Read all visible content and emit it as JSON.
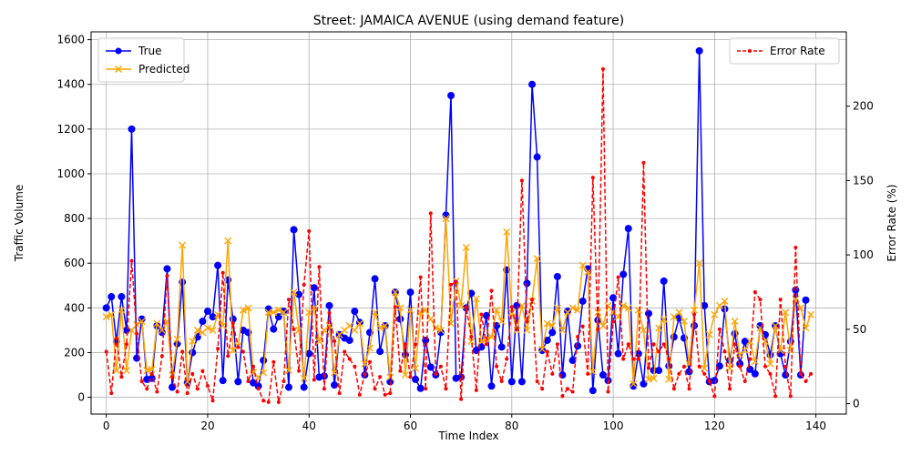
{
  "chart_data": {
    "type": "line",
    "title": "Street: JAMAICA AVENUE (using demand feature)",
    "xlabel": "Time Index",
    "ylabel": "Traffic Volume",
    "y2label": "Error Rate (%)",
    "xlim": [
      -3,
      146
    ],
    "ylim": [
      -75,
      1635
    ],
    "y2lim": [
      -7,
      250
    ],
    "xticks": [
      0,
      20,
      40,
      60,
      80,
      100,
      120,
      140
    ],
    "yticks": [
      0,
      200,
      400,
      600,
      800,
      1000,
      1200,
      1400,
      1600
    ],
    "y2ticks": [
      0,
      50,
      100,
      150,
      200
    ],
    "grid": true,
    "legend_left_position": "upper-left",
    "legend_right_position": "upper-right",
    "series": [
      {
        "name": "True",
        "axis": "left",
        "color": "#0000ff",
        "marker": "circle",
        "values": [
          400,
          450,
          250,
          450,
          300,
          1200,
          175,
          350,
          80,
          85,
          320,
          290,
          575,
          45,
          240,
          515,
          65,
          200,
          270,
          340,
          385,
          360,
          590,
          75,
          525,
          350,
          70,
          300,
          290,
          65,
          50,
          165,
          395,
          305,
          360,
          385,
          45,
          750,
          460,
          45,
          195,
          490,
          90,
          95,
          410,
          55,
          280,
          265,
          255,
          385,
          335,
          100,
          290,
          530,
          205,
          320,
          70,
          470,
          350,
          190,
          470,
          80,
          40,
          255,
          135,
          100,
          290,
          815,
          1350,
          85,
          90,
          400,
          465,
          210,
          225,
          365,
          50,
          320,
          225,
          570,
          70,
          410,
          70,
          510,
          1400,
          1075,
          210,
          255,
          290,
          540,
          100,
          385,
          165,
          230,
          430,
          575,
          30,
          345,
          100,
          75,
          445,
          195,
          550,
          755,
          50,
          195,
          60,
          375,
          120,
          120,
          520,
          140,
          270,
          355,
          265,
          115,
          320,
          1550,
          410,
          70,
          75,
          140,
          395,
          165,
          285,
          150,
          250,
          125,
          105,
          320,
          280,
          190,
          320,
          195,
          100,
          250,
          480,
          100,
          435
        ]
      },
      {
        "name": "Predicted",
        "axis": "left",
        "color": "#ffa500",
        "marker": "x",
        "values": [
          360,
          370,
          120,
          390,
          120,
          300,
          325,
          340,
          120,
          125,
          330,
          300,
          340,
          100,
          260,
          680,
          70,
          250,
          300,
          290,
          310,
          300,
          370,
          320,
          700,
          210,
          230,
          390,
          400,
          110,
          90,
          110,
          380,
          380,
          390,
          380,
          120,
          470,
          300,
          85,
          380,
          400,
          250,
          300,
          320,
          110,
          280,
          300,
          320,
          300,
          330,
          150,
          220,
          380,
          310,
          320,
          90,
          470,
          400,
          100,
          390,
          130,
          380,
          390,
          350,
          310,
          300,
          800,
          330,
          520,
          410,
          670,
          250,
          440,
          250,
          260,
          270,
          390,
          340,
          740,
          380,
          300,
          410,
          300,
          430,
          620,
          215,
          330,
          320,
          400,
          300,
          380,
          400,
          390,
          590,
          560,
          115,
          380,
          320,
          410,
          380,
          360,
          410,
          400,
          60,
          390,
          300,
          80,
          85,
          310,
          350,
          80,
          360,
          380,
          340,
          150,
          390,
          600,
          130,
          280,
          370,
          410,
          430,
          130,
          340,
          190,
          210,
          250,
          160,
          310,
          250,
          150,
          320,
          210,
          380,
          210,
          440,
          400,
          310,
          370
        ]
      },
      {
        "name": "Error Rate",
        "axis": "right",
        "color": "#ff0000",
        "marker": "dot",
        "dashed": true,
        "values": [
          35,
          7,
          44,
          18,
          40,
          96,
          47,
          15,
          10,
          20,
          8,
          32,
          86,
          18,
          8,
          35,
          7,
          20,
          10,
          22,
          12,
          2,
          37,
          88,
          32,
          54,
          38,
          35,
          15,
          25,
          10,
          2,
          1,
          28,
          1,
          15,
          70,
          50,
          22,
          80,
          116,
          16,
          92,
          10,
          61,
          42,
          7,
          35,
          30,
          25,
          6,
          20,
          28,
          10,
          18,
          6,
          7,
          65,
          22,
          40,
          18,
          40,
          85,
          10,
          128,
          20,
          25,
          10,
          80,
          82,
          3,
          65,
          45,
          9,
          60,
          40,
          76,
          25,
          15,
          30,
          65,
          50,
          150,
          55,
          70,
          15,
          10,
          35,
          20,
          40,
          5,
          10,
          8,
          45,
          52,
          20,
          152,
          50,
          225,
          8,
          55,
          85,
          30,
          40,
          30,
          30,
          162,
          24,
          40,
          35,
          40,
          30,
          10,
          20,
          25,
          10,
          60,
          25,
          20,
          15,
          5,
          50,
          35,
          10,
          40,
          25,
          15,
          30,
          75,
          70,
          25,
          20,
          5,
          70,
          25,
          5,
          105,
          20,
          15,
          20
        ]
      }
    ]
  }
}
